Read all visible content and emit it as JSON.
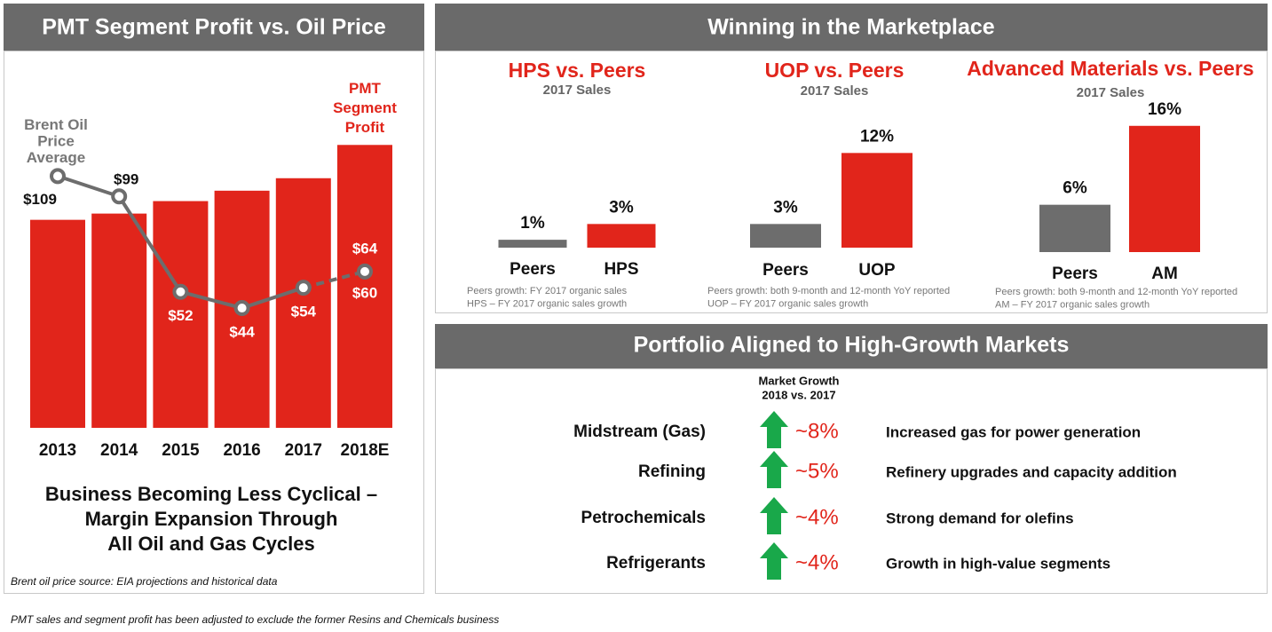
{
  "chart_data": [
    {
      "type": "combo",
      "title": "PMT Segment Profit vs. Oil Price",
      "categories": [
        "2013",
        "2014",
        "2015",
        "2016",
        "2017",
        "2018E"
      ],
      "series": [
        {
          "name": "PMT Segment Profit",
          "color": "#e1251b",
          "type": "bar",
          "values": [
            100,
            103,
            109,
            114,
            120,
            136
          ]
        },
        {
          "name": "Brent Oil Price Average",
          "color": "#6d6d6d",
          "type": "line",
          "axis": "y2",
          "values": [
            109,
            99,
            52,
            44,
            54,
            null
          ],
          "value_labels": [
            "$109",
            "$99",
            "$52",
            "$44",
            "$54",
            null
          ]
        }
      ],
      "estimate": {
        "values": [
          60,
          64
        ],
        "value_labels": [
          "$60",
          "$64"
        ]
      },
      "ylim": [
        0,
        163
      ],
      "y2lim": [
        -15,
        152
      ],
      "caption": [
        "Business Becoming Less Cyclical –",
        "Margin Expansion Through",
        "All Oil and Gas Cycles"
      ],
      "source": "Brent oil price source: EIA projections and historical data"
    },
    {
      "type": "bar",
      "title": "HPS vs. Peers",
      "subtitle": "2017 Sales",
      "categories": [
        "Peers",
        "HPS"
      ],
      "values": [
        1,
        3
      ],
      "value_labels": [
        "1%",
        "3%"
      ],
      "colors": [
        "#6d6d6d",
        "#e1251b"
      ],
      "ylim": [
        0,
        18
      ],
      "notes": [
        "Peers growth: FY 2017 organic sales",
        "HPS – FY 2017 organic sales growth"
      ]
    },
    {
      "type": "bar",
      "title": "UOP vs. Peers",
      "subtitle": "2017 Sales",
      "categories": [
        "Peers",
        "UOP"
      ],
      "values": [
        3,
        12
      ],
      "value_labels": [
        "3%",
        "12%"
      ],
      "colors": [
        "#6d6d6d",
        "#e1251b"
      ],
      "ylim": [
        0,
        18
      ],
      "notes": [
        "Peers growth: both 9-month and 12-month YoY reported",
        "UOP – FY 2017 organic sales growth"
      ]
    },
    {
      "type": "bar",
      "title": "Advanced Materials vs. Peers",
      "subtitle": "2017 Sales",
      "categories": [
        "Peers",
        "AM"
      ],
      "values": [
        6,
        16
      ],
      "value_labels": [
        "6%",
        "16%"
      ],
      "colors": [
        "#6d6d6d",
        "#e1251b"
      ],
      "ylim": [
        0,
        18
      ],
      "notes": [
        "Peers growth: both 9-month and 12-month YoY reported",
        "AM – FY 2017 organic sales growth"
      ]
    }
  ],
  "marketplace_title": "Winning in the Marketplace",
  "portfolio": {
    "title": "Portfolio Aligned to High-Growth Markets",
    "header": [
      "Market Growth",
      "2018 vs. 2017"
    ],
    "rows": [
      [
        "Midstream (Gas)",
        "~8%",
        "Increased gas for power generation"
      ],
      [
        "Refining",
        "~5%",
        "Refinery upgrades and capacity addition"
      ],
      [
        "Petrochemicals",
        "~4%",
        "Strong demand for olefins"
      ],
      [
        "Refrigerants",
        "~4%",
        "Growth in high-value segments"
      ]
    ]
  },
  "footnote": "PMT sales and segment profit has been adjusted to exclude the former Resins and Chemicals business"
}
